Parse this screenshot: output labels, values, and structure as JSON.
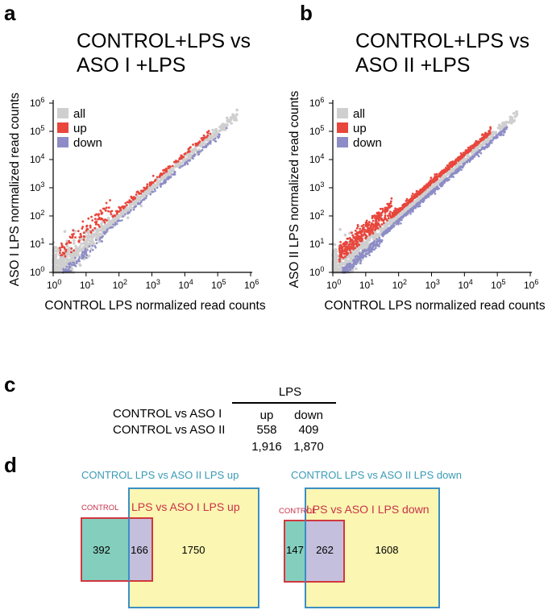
{
  "panels": {
    "a": {
      "letter": "a",
      "title_line1": "CONTROL+LPS vs",
      "title_line2": "ASO I +LPS"
    },
    "b": {
      "letter": "b",
      "title_line1": "CONTROL+LPS vs",
      "title_line2": "ASO II +LPS"
    },
    "c": {
      "letter": "c"
    },
    "d": {
      "letter": "d"
    }
  },
  "chart_data": [
    {
      "type": "scatter",
      "panel": "a",
      "xlabel": "CONTROL LPS normalized read counts",
      "ylabel": "ASO I LPS normalized read counts",
      "xscale": "log",
      "yscale": "log",
      "xlim": [
        1,
        1000000
      ],
      "ylim": [
        1,
        1000000
      ],
      "tick_base": "10",
      "tick_exponents": [
        "0",
        "1",
        "2",
        "3",
        "4",
        "5",
        "6"
      ],
      "legend_position": "top-left",
      "series": [
        {
          "name": "all",
          "color": "#cfcfcf"
        },
        {
          "name": "up",
          "color": "#e8463c"
        },
        {
          "name": "down",
          "color": "#8d8cc6"
        }
      ]
    },
    {
      "type": "scatter",
      "panel": "b",
      "xlabel": "CONTROL LPS normalized read counts",
      "ylabel": "ASO II LPS normalized read counts",
      "xscale": "log",
      "yscale": "log",
      "xlim": [
        1,
        1000000
      ],
      "ylim": [
        1,
        1000000
      ],
      "tick_base": "10",
      "tick_exponents": [
        "0",
        "1",
        "2",
        "3",
        "4",
        "5",
        "6"
      ],
      "legend_position": "top-left",
      "series": [
        {
          "name": "all",
          "color": "#cfcfcf"
        },
        {
          "name": "up",
          "color": "#e8463c"
        },
        {
          "name": "down",
          "color": "#8d8cc6"
        }
      ]
    },
    {
      "type": "table",
      "panel": "c",
      "group_header": "LPS",
      "columns": [
        "up",
        "down"
      ],
      "rows": [
        {
          "label": "CONTROL vs ASO I",
          "values": [
            "558",
            "409"
          ]
        },
        {
          "label": "CONTROL vs ASO II",
          "values": [
            "1,916",
            "1,870"
          ]
        }
      ]
    },
    {
      "type": "venn",
      "panel": "d",
      "diagrams": [
        {
          "outer_label": "CONTROL LPS vs ASO II LPS up",
          "inner_label_small": "CONTROL",
          "inner_label": "LPS vs ASO I LPS up",
          "values": {
            "only_aso_i": 392,
            "overlap": 166,
            "only_aso_ii": 1750
          }
        },
        {
          "outer_label": "CONTROL LPS vs ASO II LPS down",
          "inner_label_small": "CONTROL",
          "inner_label": "LPS vs ASO I LPS down",
          "values": {
            "only_aso_i": 147,
            "overlap": 262,
            "only_aso_ii": 1608
          }
        }
      ],
      "colors": {
        "aso_ii_fill": "#fbf6b1",
        "aso_ii_border": "#3b8fc4",
        "aso_i_fill": "#84cebd",
        "aso_i_border": "#d1373f",
        "overlap_fill": "#c4bfdc",
        "outer_label_color": "#3b9bb6",
        "inner_label_color": "#c8324a"
      }
    }
  ]
}
